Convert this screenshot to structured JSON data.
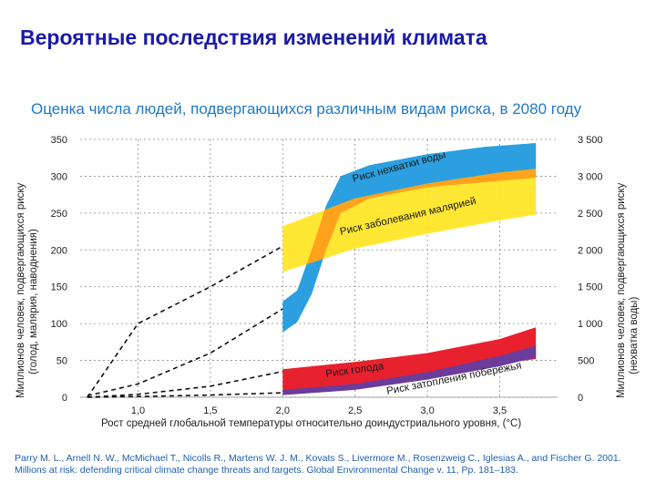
{
  "slide_title": "Вероятные последствия изменений климата",
  "citation": "Parry M. L., Arnell N. W., McMichael T., Nicolls R., Martens W. J. M., Kovats S., Livermore M., Rosenzweig C., Iglesias A., and Fischer G. 2001. Millions at risk: defending critical climate change threats and targets. Global Environmental Change v. 11, Pp. 181–183.",
  "colors": {
    "slide_title": "#1a1aa8",
    "chart_title": "#1f78c8",
    "water": "#2b9fe0",
    "malaria": "#ffe522",
    "malaria_overlap": "#ffa21c",
    "hunger": "#e8212e",
    "flood": "#6a3c9c",
    "citation": "#1f5fb0"
  },
  "chart_data": {
    "type": "area",
    "title": "Оценка числа людей, подвергающихся различным видам риска, в 2080 году",
    "xlabel": "Рост средней глобальной температуры относительно доиндустриального уровня, (°C)",
    "ylabel_left": "Миллионов человек, подвергающихся риску (голод, малярия, наводнения)",
    "ylabel_right": "Миллионов человек, подвергающихся риску (нехватка воды)",
    "x_ticks": [
      "1,0",
      "1,5",
      "2,0",
      "2,5",
      "3,0",
      "3,5"
    ],
    "y_ticks_left": [
      "0",
      "50",
      "100",
      "150",
      "200",
      "250",
      "300",
      "350"
    ],
    "y_ticks_right": [
      "0",
      "500",
      "1 000",
      "1 500",
      "2 000",
      "2 500",
      "3 000",
      "3 500"
    ],
    "xlim": [
      0.6,
      3.9
    ],
    "ylim": [
      0,
      350
    ],
    "grid": true,
    "series": [
      {
        "name": "Риск нехватки воды",
        "axis": "right",
        "x": [
          2.0,
          2.1,
          2.2,
          2.3,
          2.4,
          2.6,
          3.0,
          3.4,
          3.75
        ],
        "lower": [
          880,
          1020,
          1400,
          2000,
          2500,
          2700,
          2850,
          2920,
          2980
        ],
        "upper": [
          1300,
          1450,
          2000,
          2600,
          3000,
          3150,
          3300,
          3400,
          3450
        ],
        "dashed_x": [
          0.65,
          1.0,
          1.5,
          2.0
        ],
        "dashed_y": [
          20,
          180,
          600,
          1200
        ]
      },
      {
        "name": "Риск заболевания малярией",
        "axis": "left",
        "x": [
          2.0,
          2.5,
          3.0,
          3.5,
          3.75
        ],
        "lower": [
          170,
          202,
          222,
          240,
          248
        ],
        "upper": [
          232,
          270,
          290,
          305,
          310
        ],
        "dashed_x": [
          0.65,
          1.0,
          1.5,
          2.0
        ],
        "dashed_y": [
          0,
          100,
          150,
          205
        ]
      },
      {
        "name": "Риск голода",
        "axis": "left",
        "x": [
          2.0,
          2.5,
          3.0,
          3.5,
          3.75
        ],
        "lower": [
          7,
          16,
          28,
          45,
          52
        ],
        "upper": [
          38,
          48,
          60,
          79,
          95
        ],
        "dashed_x": [
          0.65,
          1.0,
          1.5,
          2.0
        ],
        "dashed_y": [
          0,
          4,
          15,
          35
        ]
      },
      {
        "name": "Риск затопления побережья",
        "axis": "left",
        "x": [
          2.0,
          2.5,
          3.0,
          3.5,
          3.75
        ],
        "lower": [
          3,
          10,
          24,
          42,
          54
        ],
        "upper": [
          10,
          18,
          34,
          56,
          70
        ],
        "dashed_x": [
          0.65,
          1.0,
          1.5,
          2.0
        ],
        "dashed_y": [
          0,
          1,
          3,
          6
        ]
      }
    ]
  }
}
